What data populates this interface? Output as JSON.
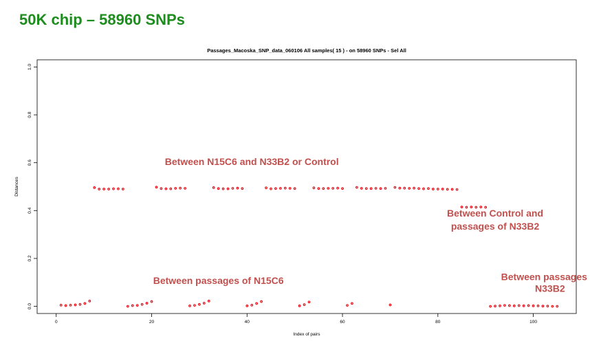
{
  "slide": {
    "title": "50K chip – 58960 SNPs"
  },
  "chart_data": {
    "type": "scatter",
    "title": "Passages_Macoska_SNP_data_060106  All samples( 15 ) - on  58960 SNPs - Sel All",
    "xlabel": "Index of pairs",
    "ylabel": "Distances",
    "xlim": [
      -4,
      109
    ],
    "ylim": [
      -0.03,
      1.03
    ],
    "xticks": [
      0,
      20,
      40,
      60,
      80,
      100
    ],
    "yticks": [
      0.0,
      0.2,
      0.4,
      0.6,
      0.8,
      1.0
    ],
    "ytick_labels": [
      "0.0",
      "0.2",
      "0.4",
      "0.6",
      "0.8",
      "1.0"
    ],
    "marker_color": "#e8000b",
    "grid": false,
    "points": [
      [
        1,
        0.005
      ],
      [
        2,
        0.003
      ],
      [
        3,
        0.005
      ],
      [
        4,
        0.006
      ],
      [
        5,
        0.008
      ],
      [
        6,
        0.012
      ],
      [
        7,
        0.022
      ],
      [
        8,
        0.496
      ],
      [
        9,
        0.49
      ],
      [
        10,
        0.49
      ],
      [
        11,
        0.49
      ],
      [
        12,
        0.491
      ],
      [
        13,
        0.491
      ],
      [
        14,
        0.49
      ],
      [
        15,
        0.0
      ],
      [
        16,
        0.003
      ],
      [
        17,
        0.004
      ],
      [
        18,
        0.008
      ],
      [
        19,
        0.013
      ],
      [
        20,
        0.02
      ],
      [
        21,
        0.498
      ],
      [
        22,
        0.492
      ],
      [
        23,
        0.491
      ],
      [
        24,
        0.491
      ],
      [
        25,
        0.493
      ],
      [
        26,
        0.494
      ],
      [
        27,
        0.493
      ],
      [
        28,
        0.002
      ],
      [
        29,
        0.004
      ],
      [
        30,
        0.008
      ],
      [
        31,
        0.013
      ],
      [
        32,
        0.022
      ],
      [
        33,
        0.496
      ],
      [
        34,
        0.492
      ],
      [
        35,
        0.491
      ],
      [
        36,
        0.491
      ],
      [
        37,
        0.493
      ],
      [
        38,
        0.494
      ],
      [
        39,
        0.492
      ],
      [
        40,
        0.002
      ],
      [
        41,
        0.005
      ],
      [
        42,
        0.012
      ],
      [
        43,
        0.02
      ],
      [
        44,
        0.495
      ],
      [
        45,
        0.491
      ],
      [
        46,
        0.492
      ],
      [
        47,
        0.493
      ],
      [
        48,
        0.494
      ],
      [
        49,
        0.493
      ],
      [
        50,
        0.492
      ],
      [
        51,
        0.002
      ],
      [
        52,
        0.007
      ],
      [
        53,
        0.018
      ],
      [
        54,
        0.495
      ],
      [
        55,
        0.492
      ],
      [
        56,
        0.492
      ],
      [
        57,
        0.493
      ],
      [
        58,
        0.493
      ],
      [
        59,
        0.494
      ],
      [
        60,
        0.492
      ],
      [
        61,
        0.004
      ],
      [
        62,
        0.012
      ],
      [
        63,
        0.497
      ],
      [
        64,
        0.493
      ],
      [
        65,
        0.492
      ],
      [
        66,
        0.492
      ],
      [
        67,
        0.493
      ],
      [
        68,
        0.492
      ],
      [
        69,
        0.493
      ],
      [
        70,
        0.006
      ],
      [
        71,
        0.497
      ],
      [
        72,
        0.494
      ],
      [
        73,
        0.494
      ],
      [
        74,
        0.493
      ],
      [
        75,
        0.494
      ],
      [
        76,
        0.492
      ],
      [
        77,
        0.491
      ],
      [
        78,
        0.492
      ],
      [
        79,
        0.49
      ],
      [
        80,
        0.49
      ],
      [
        81,
        0.49
      ],
      [
        82,
        0.489
      ],
      [
        83,
        0.489
      ],
      [
        84,
        0.488
      ],
      [
        85,
        0.415
      ],
      [
        86,
        0.414
      ],
      [
        87,
        0.415
      ],
      [
        88,
        0.414
      ],
      [
        89,
        0.415
      ],
      [
        90,
        0.414
      ],
      [
        91,
        0.0
      ],
      [
        92,
        0.001
      ],
      [
        93,
        0.002
      ],
      [
        94,
        0.004
      ],
      [
        95,
        0.003
      ],
      [
        96,
        0.002
      ],
      [
        97,
        0.003
      ],
      [
        98,
        0.002
      ],
      [
        99,
        0.003
      ],
      [
        100,
        0.002
      ],
      [
        101,
        0.002
      ],
      [
        102,
        0.001
      ],
      [
        103,
        0.001
      ],
      [
        104,
        0.0
      ],
      [
        105,
        0.0
      ]
    ],
    "annotations": [
      {
        "text": "Between N15C6 and N33B2 or Control",
        "x": 41,
        "y": 0.59
      },
      {
        "text": "Between Control and",
        "x": 92,
        "y": 0.375
      },
      {
        "text": "passages of N33B2",
        "x": 92,
        "y": 0.32
      },
      {
        "text": "Between passages of N15C6",
        "x": 34,
        "y": 0.093
      },
      {
        "text": "Between passages of",
        "x": 103.5,
        "y": 0.11
      },
      {
        "text": "N33B2",
        "x": 103.5,
        "y": 0.06
      }
    ]
  }
}
